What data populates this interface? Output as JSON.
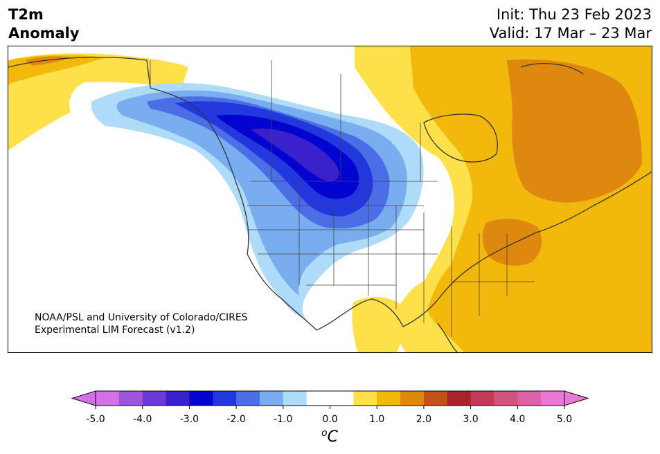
{
  "title": {
    "line1": "T2m",
    "line2": "Anomaly"
  },
  "init_label": "Init: Thu 23 Feb 2023",
  "valid_label": "Valid: 17 Mar – 23 Mar",
  "credit": {
    "line1": "NOAA/PSL and University of Colorado/CIRES",
    "line2": "Experimental LIM Forecast (v1.2)"
  },
  "colorbar": {
    "unit_label": "oC",
    "ticks": [
      "-5.0",
      "-4.0",
      "-3.0",
      "-2.0",
      "-1.0",
      "0.0",
      "1.0",
      "2.0",
      "3.0",
      "4.0",
      "5.0"
    ],
    "colors": [
      "#d670e8",
      "#9c55dc",
      "#6b3ad6",
      "#3b21cc",
      "#0404d0",
      "#2338dc",
      "#4b6ee6",
      "#78aeef",
      "#aedbf8",
      "#ffffff",
      "#ffffff",
      "#fde04a",
      "#f2b80c",
      "#de880f",
      "#c3521a",
      "#a8242a",
      "#c23a55",
      "#d1557b",
      "#dc61a7",
      "#e877d6"
    ],
    "under_color": "#d670e8",
    "over_color": "#e877d6"
  },
  "map": {
    "region": "North America",
    "field": "2 m temperature anomaly forecast",
    "features": [
      "cold anomaly over western Canada and northern Plains",
      "warm anomaly over eastern Canada and eastern US"
    ]
  }
}
